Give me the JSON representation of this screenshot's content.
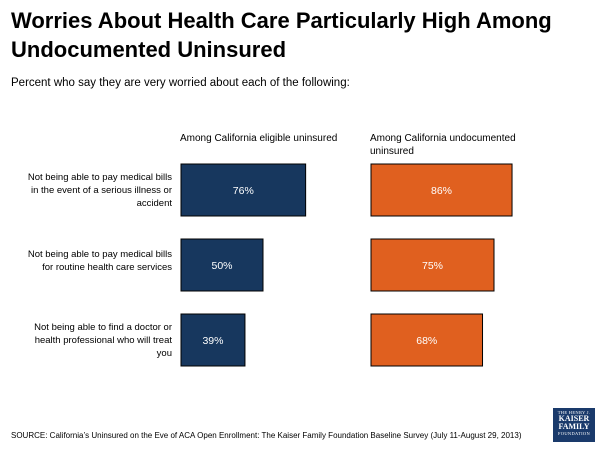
{
  "title": "Worries About Health Care Particularly High Among Undocumented Uninsured",
  "subtitle": "Percent who say they are very worried about each of the following:",
  "source": "SOURCE: California’s Uninsured on the Eve of ACA Open Enrollment: The Kaiser Family Foundation Baseline Survey (July 11-August 29, 2013)",
  "logo": {
    "line1": "THE HENRY J.",
    "line2": "KAISER",
    "line3": "FAMILY",
    "line4": "FOUNDATION"
  },
  "chart_data": {
    "type": "bar",
    "orientation": "horizontal",
    "categories": [
      "Not being able to pay medical bills in the event of a serious illness or accident",
      "Not being able to pay medical bills for routine health care services",
      "Not being able to find a doctor or health professional who will treat you"
    ],
    "series": [
      {
        "name": "Among California eligible uninsured",
        "color": "#17375e",
        "values": [
          76,
          50,
          39
        ]
      },
      {
        "name": "Among California undocumented uninsured",
        "color": "#e0601f",
        "values": [
          86,
          75,
          68
        ]
      }
    ],
    "unit": "%",
    "xlim": [
      0,
      100
    ]
  }
}
